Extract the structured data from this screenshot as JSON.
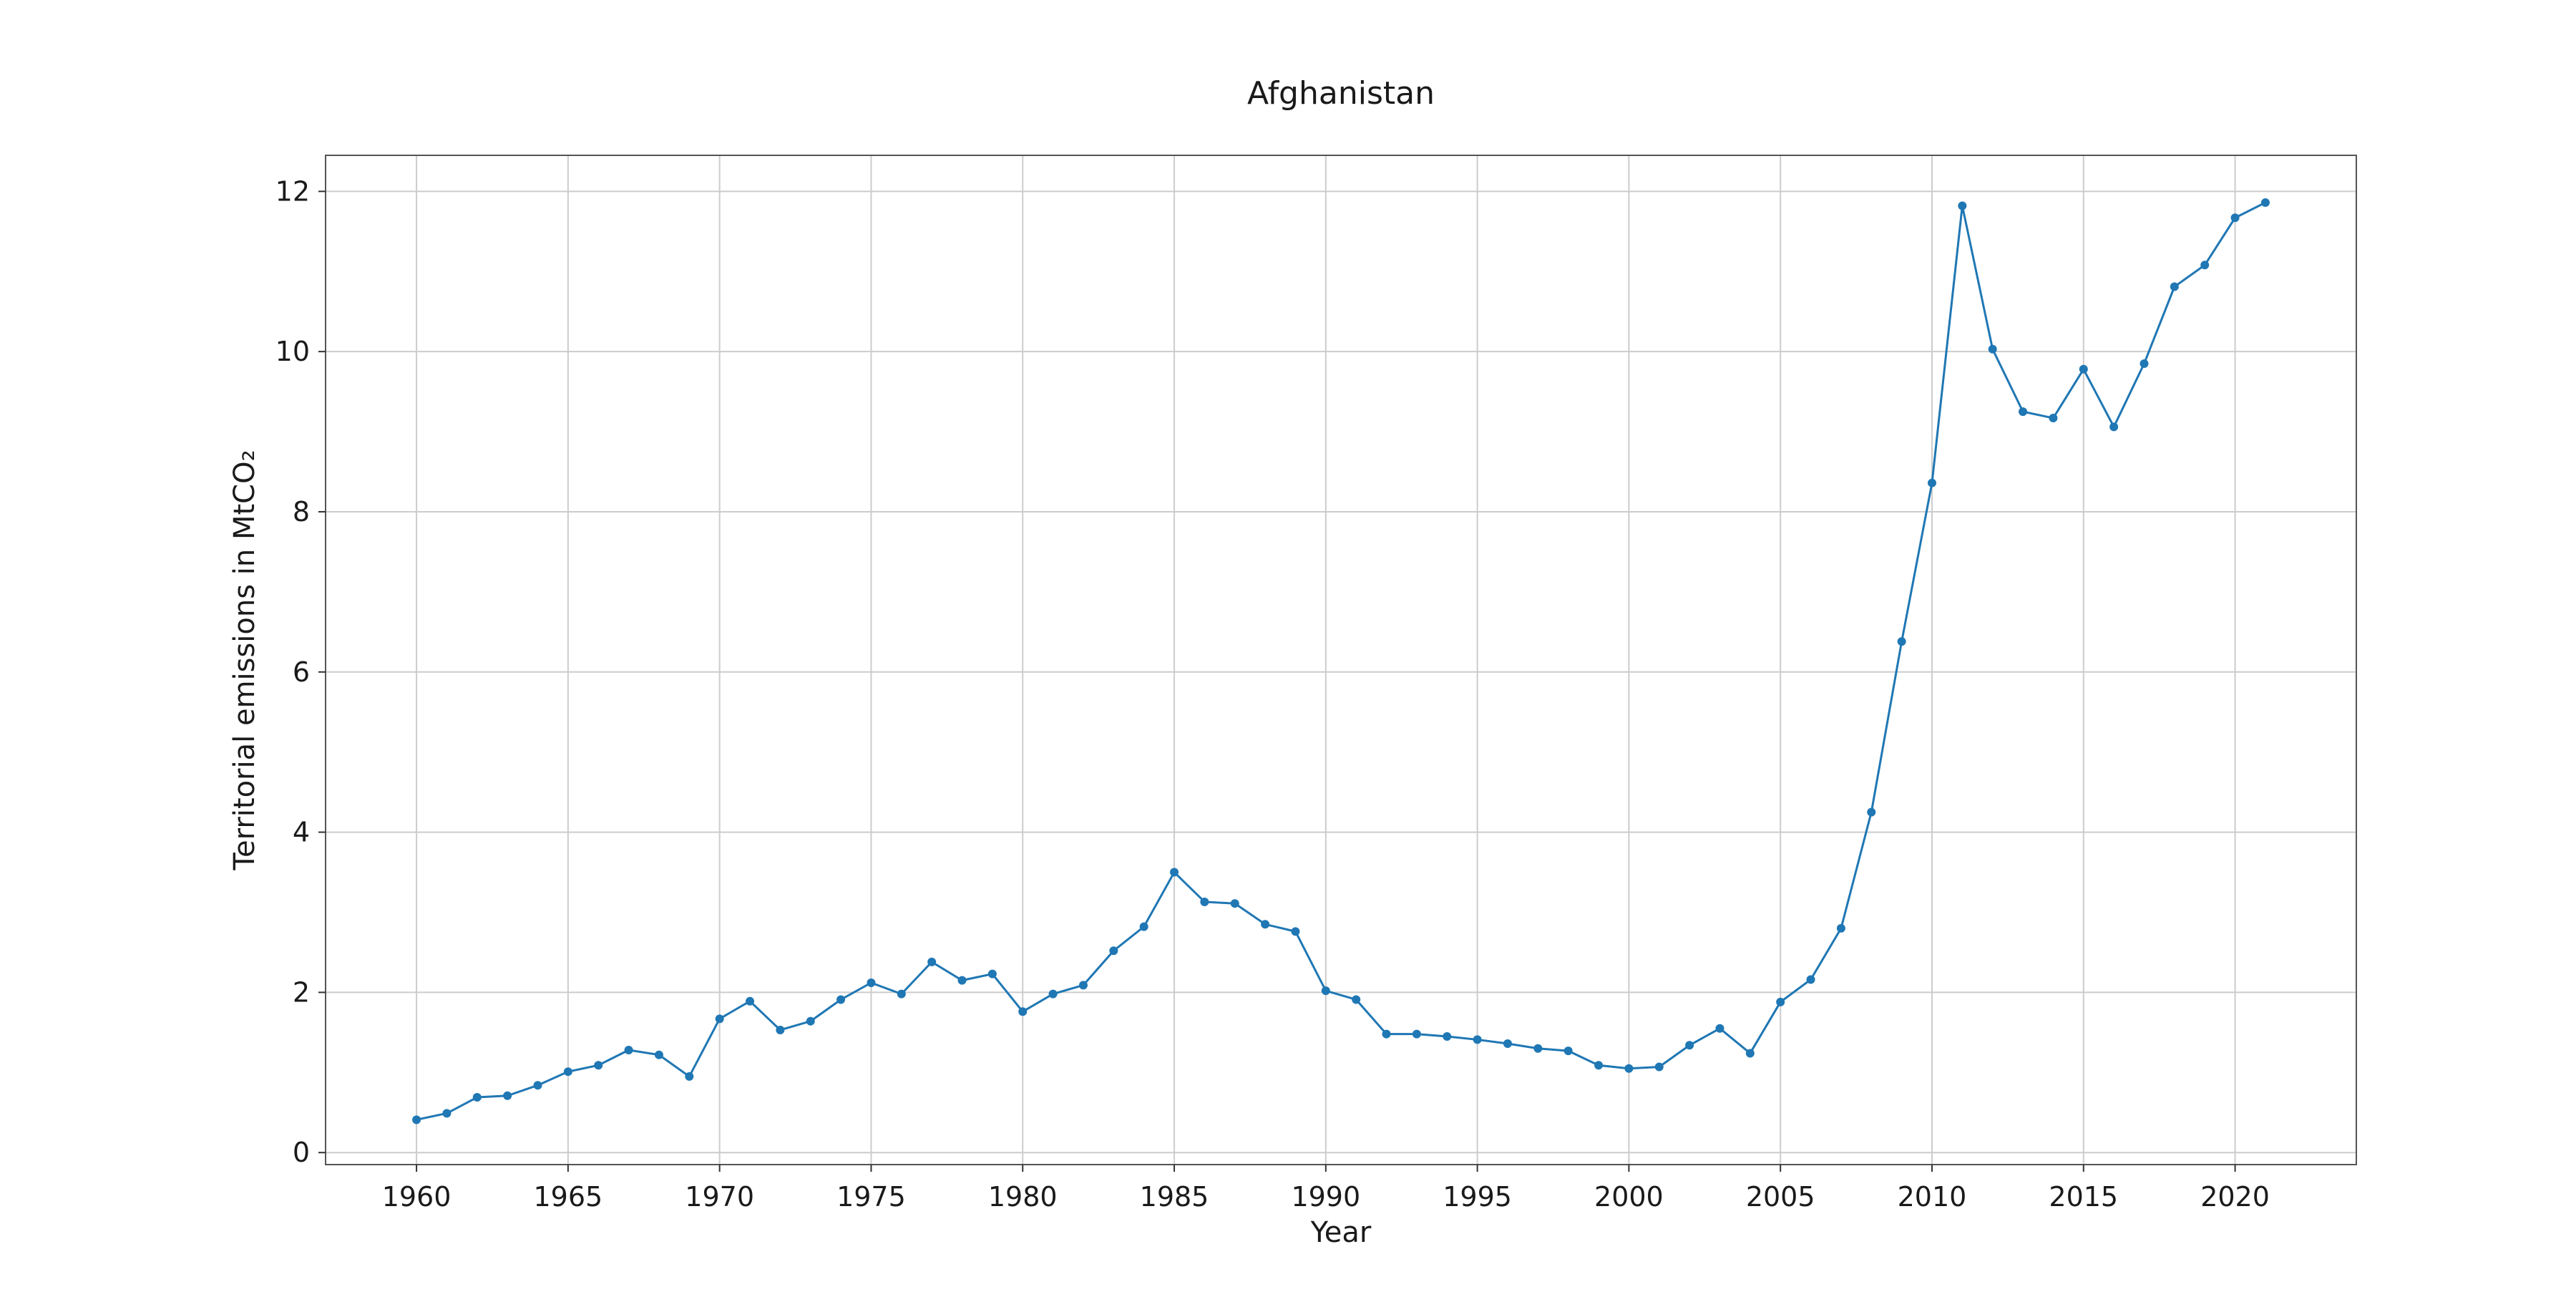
{
  "chart_data": {
    "type": "line",
    "title": "Afghanistan",
    "xlabel": "Year",
    "ylabel": "Territorial emissions in MtCO₂",
    "xlim": [
      1957,
      2024
    ],
    "ylim": [
      -0.15,
      12.45
    ],
    "xticks": [
      1960,
      1965,
      1970,
      1975,
      1980,
      1985,
      1990,
      1995,
      2000,
      2005,
      2010,
      2015,
      2020
    ],
    "yticks": [
      0,
      2,
      4,
      6,
      8,
      10,
      12
    ],
    "grid": true,
    "colors": {
      "series": "#1f77b4",
      "grid": "#cccccc"
    },
    "x": [
      1960,
      1961,
      1962,
      1963,
      1964,
      1965,
      1966,
      1967,
      1968,
      1969,
      1970,
      1971,
      1972,
      1973,
      1974,
      1975,
      1976,
      1977,
      1978,
      1979,
      1980,
      1981,
      1982,
      1983,
      1984,
      1985,
      1986,
      1987,
      1988,
      1989,
      1990,
      1991,
      1992,
      1993,
      1994,
      1995,
      1996,
      1997,
      1998,
      1999,
      2000,
      2001,
      2002,
      2003,
      2004,
      2005,
      2006,
      2007,
      2008,
      2009,
      2010,
      2011,
      2012,
      2013,
      2014,
      2015,
      2016,
      2017,
      2018,
      2019,
      2020,
      2021
    ],
    "series": [
      {
        "values": [
          0.41,
          0.49,
          0.69,
          0.71,
          0.84,
          1.01,
          1.09,
          1.28,
          1.22,
          0.95,
          1.67,
          1.89,
          1.53,
          1.64,
          1.91,
          2.12,
          1.98,
          2.38,
          2.15,
          2.23,
          1.76,
          1.98,
          2.09,
          2.52,
          2.82,
          3.5,
          3.13,
          3.11,
          2.85,
          2.76,
          2.02,
          1.91,
          1.48,
          1.48,
          1.45,
          1.41,
          1.36,
          1.3,
          1.27,
          1.09,
          1.05,
          1.07,
          1.34,
          1.55,
          1.24,
          1.88,
          2.16,
          2.8,
          4.25,
          6.38,
          8.36,
          11.82,
          10.03,
          9.25,
          9.17,
          9.78,
          9.06,
          9.85,
          10.81,
          11.08,
          11.67,
          11.86
        ]
      }
    ]
  }
}
